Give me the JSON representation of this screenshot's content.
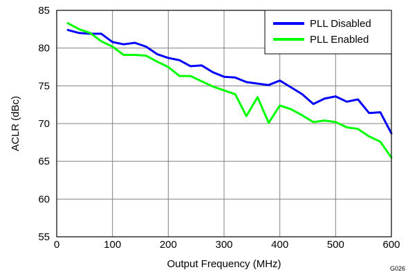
{
  "figure_id": "G026",
  "chart_data": {
    "type": "line",
    "xlabel": "Output Frequency (MHz)",
    "ylabel": "ACLR (dBc)",
    "xlim": [
      0,
      600
    ],
    "ylim": [
      55,
      85
    ],
    "xticks": [
      0,
      100,
      200,
      300,
      400,
      500,
      600
    ],
    "yticks": [
      55,
      60,
      65,
      70,
      75,
      80,
      85
    ],
    "grid": true,
    "legend_position": "top-right",
    "series": [
      {
        "name": "PLL Disabled",
        "color": "#0000ff",
        "x": [
          20,
          40,
          60,
          80,
          100,
          120,
          140,
          160,
          180,
          200,
          220,
          240,
          260,
          280,
          300,
          320,
          340,
          360,
          380,
          400,
          420,
          440,
          460,
          480,
          500,
          520,
          540,
          560,
          580,
          600
        ],
        "y": [
          82.4,
          82.0,
          81.9,
          81.9,
          80.8,
          80.5,
          80.7,
          80.2,
          79.2,
          78.7,
          78.4,
          77.6,
          77.7,
          76.8,
          76.2,
          76.1,
          75.5,
          75.3,
          75.1,
          75.7,
          74.8,
          73.9,
          72.6,
          73.3,
          73.6,
          72.9,
          73.2,
          71.4,
          71.5,
          68.7
        ]
      },
      {
        "name": "PLL Enabled",
        "color": "#00ff00",
        "x": [
          20,
          40,
          60,
          80,
          100,
          120,
          140,
          160,
          180,
          200,
          220,
          240,
          260,
          280,
          300,
          320,
          340,
          360,
          380,
          400,
          420,
          440,
          460,
          480,
          500,
          520,
          540,
          560,
          580,
          600
        ],
        "y": [
          83.3,
          82.5,
          82.0,
          80.9,
          80.2,
          79.1,
          79.1,
          79.0,
          78.2,
          77.5,
          76.3,
          76.3,
          75.6,
          74.9,
          74.4,
          73.9,
          71.0,
          73.5,
          70.1,
          72.4,
          71.9,
          71.1,
          70.2,
          70.4,
          70.2,
          69.5,
          69.3,
          68.3,
          67.6,
          65.5
        ]
      }
    ]
  }
}
